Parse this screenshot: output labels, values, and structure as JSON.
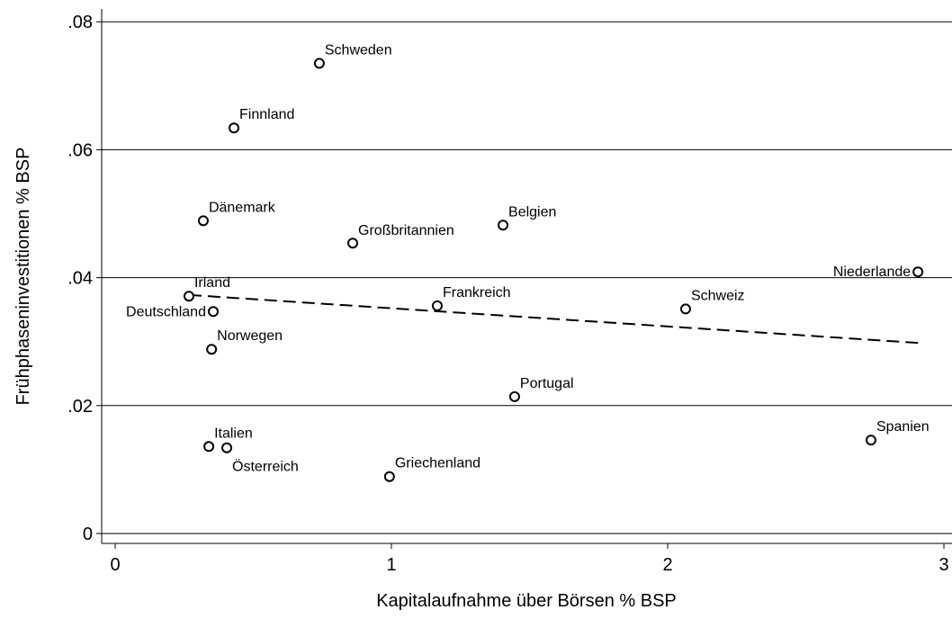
{
  "chart_data": {
    "type": "scatter",
    "xlabel": "Kapitalaufnahme über Börsen % BSP",
    "ylabel": "Frühphaseninvestitionen % BSP",
    "labels": [
      "Schweden",
      "Finnland",
      "Dänemark",
      "Großbritannien",
      "Belgien",
      "Niederlande",
      "Irland",
      "Deutschland",
      "Frankreich",
      "Schweiz",
      "Norwegen",
      "Portugal",
      "Italien",
      "Österreich",
      "Griechenland",
      "Spanien"
    ],
    "x": [
      0.739,
      0.43,
      0.319,
      0.86,
      1.404,
      2.906,
      0.267,
      0.355,
      1.166,
      2.065,
      0.349,
      1.446,
      0.339,
      0.404,
      0.993,
      2.736
    ],
    "values": [
      0.0735,
      0.0634,
      0.0489,
      0.0454,
      0.0482,
      0.0409,
      0.0371,
      0.0347,
      0.0356,
      0.0351,
      0.0288,
      0.0214,
      0.0136,
      0.0134,
      0.0089,
      0.0146
    ],
    "fit_line": {
      "x": [
        0.267,
        2.906
      ],
      "values": [
        0.0373,
        0.0298
      ],
      "dash": "14,7"
    },
    "xlim": [
      -0.0489,
      3.0293
    ],
    "ylim": [
      -0.00155,
      0.082
    ],
    "xticks": [
      0,
      1,
      2,
      3
    ],
    "yticks": [
      0,
      {
        "value": 0.02,
        "label": ".02"
      },
      {
        "value": 0.04,
        "label": ".04"
      },
      {
        "value": 0.06,
        "label": ".06"
      },
      {
        "value": 0.08,
        "label": ".08"
      }
    ],
    "grid": true,
    "color": "#000000"
  }
}
